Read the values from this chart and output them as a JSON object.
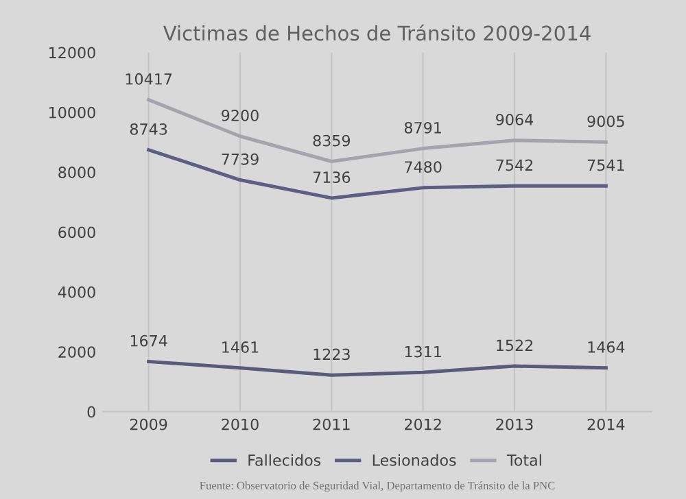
{
  "chart_data": {
    "type": "line",
    "title": "Victimas de Hechos de Tránsito 2009-2014",
    "categories": [
      "2009",
      "2010",
      "2011",
      "2012",
      "2013",
      "2014"
    ],
    "series": [
      {
        "name": "Fallecidos",
        "color": "#5a5a7a",
        "values": [
          1674,
          1461,
          1223,
          1311,
          1522,
          1464
        ]
      },
      {
        "name": "Lesionados",
        "color": "#5e5e84",
        "values": [
          8743,
          7739,
          7136,
          7480,
          7542,
          7541
        ]
      },
      {
        "name": "Total",
        "color": "#a4a4ac",
        "values": [
          10417,
          9200,
          8359,
          8791,
          9064,
          9005
        ]
      }
    ],
    "ylim": [
      0,
      12000
    ],
    "yticks": [
      0,
      2000,
      4000,
      6000,
      8000,
      10000,
      12000
    ],
    "grid": "x",
    "legend": "bottom",
    "data_labels": true,
    "marker": "none",
    "line_style": "solid",
    "annotations": [
      "Fuente: Observatorio de Seguridad Vial, Departamento de Tránsito de la PNC"
    ]
  }
}
